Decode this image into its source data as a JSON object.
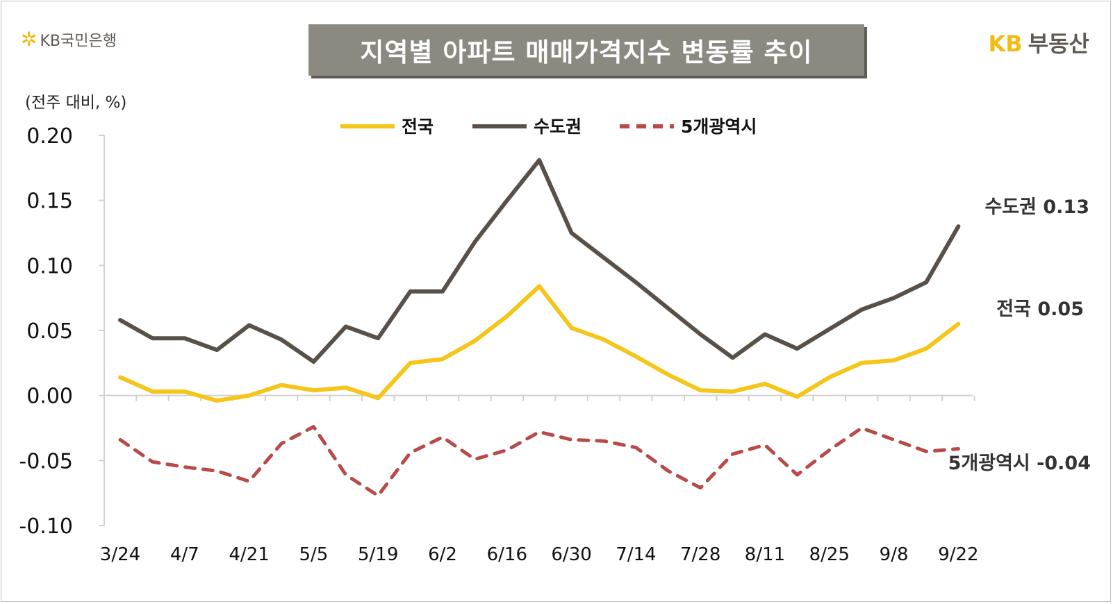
{
  "brand_left": "KB국민은행",
  "brand_right_kb": "KB",
  "brand_right_rest": "부동산",
  "chart_data": {
    "type": "line",
    "title": "지역별 아파트 매매가격지수 변동률 추이",
    "unit_label": "(전주 대비, %)",
    "ylim": [
      -0.1,
      0.2
    ],
    "y_ticks": [
      "0.20",
      "0.15",
      "0.10",
      "0.05",
      "0.00",
      "-0.05",
      "-0.10"
    ],
    "x_tick_labels": [
      "3/24",
      "4/7",
      "4/21",
      "5/5",
      "5/19",
      "6/2",
      "6/16",
      "6/30",
      "7/14",
      "7/28",
      "8/11",
      "8/25",
      "9/8",
      "9/22"
    ],
    "x": [
      "3/24",
      "3/31",
      "4/7",
      "4/14",
      "4/21",
      "4/28",
      "5/5",
      "5/12",
      "5/19",
      "5/26",
      "6/2",
      "6/9",
      "6/16",
      "6/23",
      "6/30",
      "7/7",
      "7/14",
      "7/21",
      "7/28",
      "8/4",
      "8/11",
      "8/18",
      "8/25",
      "9/1",
      "9/8",
      "9/15",
      "9/22"
    ],
    "series": [
      {
        "name": "전국",
        "color": "#f5c518",
        "dash": "solid",
        "values": [
          0.014,
          0.003,
          0.003,
          -0.004,
          0.0,
          0.008,
          0.004,
          0.006,
          -0.002,
          0.025,
          0.028,
          0.042,
          0.061,
          0.084,
          0.052,
          0.043,
          0.03,
          0.016,
          0.004,
          0.003,
          0.009,
          -0.001,
          0.014,
          0.025,
          0.027,
          0.036,
          0.055
        ]
      },
      {
        "name": "수도권",
        "color": "#595048",
        "dash": "solid",
        "values": [
          0.058,
          0.044,
          0.044,
          0.035,
          0.054,
          0.043,
          0.026,
          0.053,
          0.044,
          0.08,
          0.08,
          0.118,
          0.15,
          0.181,
          0.125,
          0.106,
          0.087,
          0.067,
          0.047,
          0.029,
          0.047,
          0.036,
          0.051,
          0.066,
          0.075,
          0.087,
          0.13
        ]
      },
      {
        "name": "5개광역시",
        "color": "#b84a48",
        "dash": "dashed",
        "values": [
          -0.034,
          -0.051,
          -0.055,
          -0.058,
          -0.066,
          -0.037,
          -0.024,
          -0.061,
          -0.077,
          -0.044,
          -0.032,
          -0.049,
          -0.042,
          -0.028,
          -0.034,
          -0.035,
          -0.04,
          -0.058,
          -0.071,
          -0.045,
          -0.038,
          -0.061,
          -0.042,
          -0.025,
          -0.034,
          -0.043,
          -0.041
        ]
      }
    ],
    "end_labels": [
      {
        "series": "수도권",
        "text": "수도권 0.13"
      },
      {
        "series": "전국",
        "text": "전국 0.05"
      },
      {
        "series": "5개광역시",
        "text": "5개광역시 -0.04"
      }
    ],
    "legend": {
      "position": "top-center",
      "items": [
        "전국",
        "수도권",
        "5개광역시"
      ]
    },
    "grid": false
  }
}
